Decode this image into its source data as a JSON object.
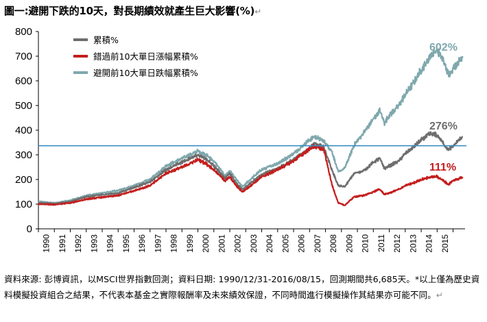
{
  "title": "圖一:避開下跌的10天，對長期績效就產生巨大影響(%)",
  "title_mark": "↵",
  "note": "資料來源: 彭博資訊，以MSCI世界指數回測；資料日期: 1990/12/31-2016/08/15，回測期間共6,685天。*以上僅為歷史資料模擬投資組合之結果，不代表本基金之實際報酬率及未來績效保證，不同時間進行模擬操作其結果亦可能不同。",
  "note_mark": "↵",
  "colors": {
    "series1": "#6e6e6e",
    "series2": "#c41e1e",
    "series3": "#7fa8ad",
    "refline": "#3b8fc4"
  },
  "chart_data": {
    "type": "line",
    "x_categories": [
      "1990",
      "1991",
      "1992",
      "1993",
      "1994",
      "1995",
      "1996",
      "1997",
      "1998",
      "1999",
      "2000",
      "2001",
      "2002",
      "2003",
      "2004",
      "2005",
      "2006",
      "2007",
      "2008",
      "2009",
      "2010",
      "2011",
      "2012",
      "2013",
      "2014",
      "2015"
    ],
    "ylim": [
      0,
      800
    ],
    "yticks": [
      0,
      100,
      200,
      300,
      400,
      500,
      600,
      700,
      800
    ],
    "grid": false,
    "legend_position": "top-left",
    "reference_line": {
      "y": 337
    },
    "series": [
      {
        "name": "累積%",
        "color": "#6e6e6e",
        "end_label": "276%",
        "points": [
          [
            1990.0,
            105
          ],
          [
            1991.0,
            102
          ],
          [
            1992.0,
            110
          ],
          [
            1993.0,
            130
          ],
          [
            1994.0,
            138
          ],
          [
            1995.0,
            145
          ],
          [
            1996.0,
            168
          ],
          [
            1997.0,
            190
          ],
          [
            1998.0,
            240
          ],
          [
            1999.0,
            270
          ],
          [
            2000.0,
            300
          ],
          [
            2000.5,
            285
          ],
          [
            2001.0,
            255
          ],
          [
            2001.7,
            205
          ],
          [
            2002.0,
            225
          ],
          [
            2002.4,
            185
          ],
          [
            2002.8,
            160
          ],
          [
            2003.2,
            180
          ],
          [
            2004.0,
            220
          ],
          [
            2005.0,
            245
          ],
          [
            2006.0,
            280
          ],
          [
            2006.8,
            318
          ],
          [
            2007.3,
            345
          ],
          [
            2007.9,
            330
          ],
          [
            2008.4,
            240
          ],
          [
            2008.8,
            175
          ],
          [
            2009.2,
            170
          ],
          [
            2009.8,
            225
          ],
          [
            2010.4,
            235
          ],
          [
            2011.0,
            270
          ],
          [
            2011.4,
            285
          ],
          [
            2011.7,
            245
          ],
          [
            2012.0,
            255
          ],
          [
            2012.6,
            275
          ],
          [
            2013.0,
            305
          ],
          [
            2013.5,
            330
          ],
          [
            2014.0,
            360
          ],
          [
            2014.3,
            375
          ],
          [
            2014.6,
            385
          ],
          [
            2015.0,
            380
          ],
          [
            2015.4,
            345
          ],
          [
            2015.7,
            320
          ],
          [
            2016.0,
            335
          ],
          [
            2016.6,
            375
          ]
        ]
      },
      {
        "name": "錯過前10大單日漲幅累積%",
        "color": "#c41e1e",
        "end_label": "111%",
        "points": [
          [
            1990.0,
            100
          ],
          [
            1991.0,
            98
          ],
          [
            1992.0,
            105
          ],
          [
            1993.0,
            120
          ],
          [
            1994.0,
            128
          ],
          [
            1995.0,
            135
          ],
          [
            1996.0,
            155
          ],
          [
            1997.0,
            175
          ],
          [
            1998.0,
            225
          ],
          [
            1999.0,
            250
          ],
          [
            2000.0,
            280
          ],
          [
            2000.5,
            265
          ],
          [
            2001.0,
            240
          ],
          [
            2001.7,
            195
          ],
          [
            2002.0,
            210
          ],
          [
            2002.4,
            175
          ],
          [
            2002.8,
            150
          ],
          [
            2003.2,
            170
          ],
          [
            2004.0,
            210
          ],
          [
            2005.0,
            240
          ],
          [
            2006.0,
            275
          ],
          [
            2006.8,
            315
          ],
          [
            2007.3,
            335
          ],
          [
            2007.9,
            320
          ],
          [
            2008.4,
            180
          ],
          [
            2008.8,
            105
          ],
          [
            2009.2,
            95
          ],
          [
            2009.8,
            130
          ],
          [
            2010.4,
            135
          ],
          [
            2011.0,
            150
          ],
          [
            2011.4,
            160
          ],
          [
            2011.7,
            140
          ],
          [
            2012.0,
            145
          ],
          [
            2012.6,
            160
          ],
          [
            2013.0,
            175
          ],
          [
            2013.5,
            185
          ],
          [
            2014.0,
            200
          ],
          [
            2014.3,
            205
          ],
          [
            2014.6,
            210
          ],
          [
            2015.0,
            212
          ],
          [
            2015.4,
            195
          ],
          [
            2015.7,
            180
          ],
          [
            2016.0,
            195
          ],
          [
            2016.6,
            210
          ]
        ]
      },
      {
        "name": "避開前10大單日跌幅累積%",
        "color": "#7fa8ad",
        "end_label": "602%",
        "points": [
          [
            1990.0,
            110
          ],
          [
            1991.0,
            105
          ],
          [
            1992.0,
            115
          ],
          [
            1993.0,
            135
          ],
          [
            1994.0,
            145
          ],
          [
            1995.0,
            155
          ],
          [
            1996.0,
            175
          ],
          [
            1997.0,
            200
          ],
          [
            1998.0,
            255
          ],
          [
            1999.0,
            285
          ],
          [
            2000.0,
            315
          ],
          [
            2000.5,
            300
          ],
          [
            2001.0,
            275
          ],
          [
            2001.7,
            215
          ],
          [
            2002.0,
            235
          ],
          [
            2002.4,
            200
          ],
          [
            2002.8,
            170
          ],
          [
            2003.2,
            195
          ],
          [
            2004.0,
            240
          ],
          [
            2005.0,
            265
          ],
          [
            2006.0,
            305
          ],
          [
            2006.8,
            350
          ],
          [
            2007.3,
            375
          ],
          [
            2007.9,
            355
          ],
          [
            2008.4,
            315
          ],
          [
            2008.8,
            230
          ],
          [
            2009.2,
            245
          ],
          [
            2009.8,
            340
          ],
          [
            2010.4,
            390
          ],
          [
            2011.0,
            445
          ],
          [
            2011.4,
            480
          ],
          [
            2011.7,
            430
          ],
          [
            2012.0,
            460
          ],
          [
            2012.6,
            500
          ],
          [
            2013.0,
            545
          ],
          [
            2013.5,
            590
          ],
          [
            2014.0,
            645
          ],
          [
            2014.3,
            670
          ],
          [
            2014.6,
            705
          ],
          [
            2015.0,
            725
          ],
          [
            2015.4,
            680
          ],
          [
            2015.7,
            625
          ],
          [
            2016.0,
            650
          ],
          [
            2016.6,
            700
          ]
        ]
      }
    ]
  }
}
